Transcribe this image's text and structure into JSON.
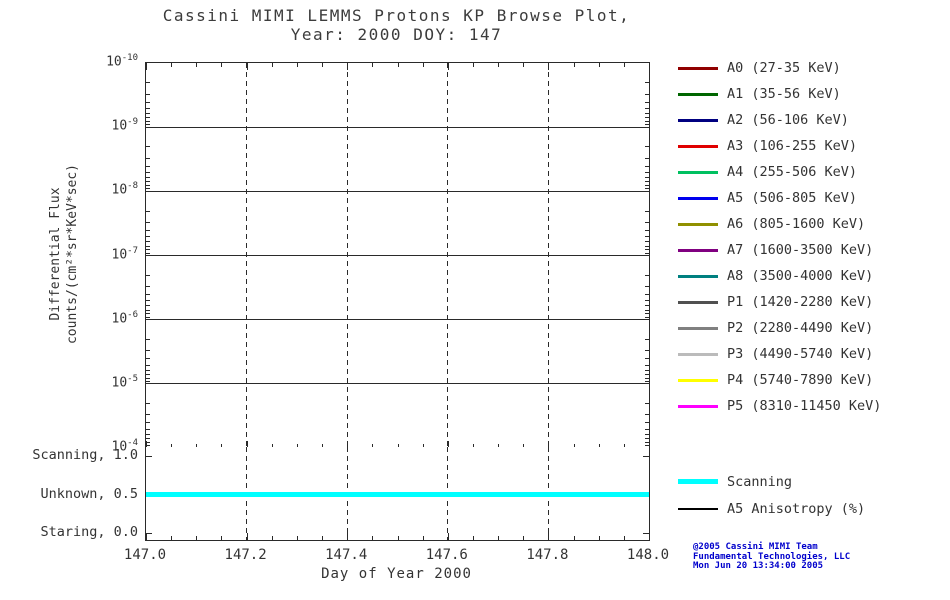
{
  "header": {
    "title": "Cassini MIMI LEMMS Protons KP Browse Plot,",
    "subtitle": "Year: 2000 DOY: 147"
  },
  "chart_data": {
    "type": "line",
    "title": "Cassini MIMI LEMMS Protons KP Browse Plot, Year: 2000 DOY: 147",
    "xlabel": "Day of Year 2000",
    "ylabel": "Differential Flux counts/(cm²*sr*KeV*sec)",
    "ylabel_line1": "Differential Flux",
    "ylabel_line2": "counts/(cm²*sr*KeV*sec)",
    "x_range": [
      147.0,
      148.0
    ],
    "x_tick_labels": [
      "147.0",
      "147.2",
      "147.4",
      "147.6",
      "147.8",
      "148.0"
    ],
    "x_minor_tick_step": 0.05,
    "y_axis": {
      "scale": "log",
      "tick_exponents_top_to_bottom": [
        -10,
        -9,
        -8,
        -7,
        -6,
        -5,
        -4
      ],
      "note": "flux axis labeled 10^-10 at top through 10^-4 at bottom; no flux data is plotted in the main panel"
    },
    "series": [],
    "grid": {
      "horizontal": "solid",
      "vertical": "dashed",
      "vertical_positions": [
        147.2,
        147.4,
        147.6,
        147.8
      ]
    },
    "status_panel": {
      "axis_labels_top_to_bottom": [
        "Scanning, 1.0",
        "Unknown, 0.5",
        "Staring, 0.0"
      ],
      "axis_values": [
        1.0,
        0.5,
        0.0
      ],
      "series": [
        {
          "name": "Scanning",
          "color": "#00FFFF",
          "value": 0.5,
          "x_start": 147.0,
          "x_end": 148.0
        }
      ]
    },
    "legend_position": "right",
    "legend": [
      {
        "label": "A0 (27-35 KeV)",
        "color": "#900000"
      },
      {
        "label": "A1 (35-56 KeV)",
        "color": "#006600"
      },
      {
        "label": "A2 (56-106 KeV)",
        "color": "#000080"
      },
      {
        "label": "A3 (106-255 KeV)",
        "color": "#E00000"
      },
      {
        "label": "A4 (255-506 KeV)",
        "color": "#00C060"
      },
      {
        "label": "A5 (506-805 KeV)",
        "color": "#0000EE"
      },
      {
        "label": "A6 (805-1600 KeV)",
        "color": "#909000"
      },
      {
        "label": "A7 (1600-3500 KeV)",
        "color": "#800080"
      },
      {
        "label": "A8 (3500-4000 KeV)",
        "color": "#008080"
      },
      {
        "label": "P1 (1420-2280 KeV)",
        "color": "#505050"
      },
      {
        "label": "P2 (2280-4490 KeV)",
        "color": "#808080"
      },
      {
        "label": "P3 (4490-5740 KeV)",
        "color": "#BBBBBB"
      },
      {
        "label": "P4 (5740-7890 KeV)",
        "color": "#FFFF00"
      },
      {
        "label": "P5 (8310-11450 KeV)",
        "color": "#FF00FF"
      }
    ],
    "status_legend": [
      {
        "label": "Scanning",
        "color": "#00FFFF",
        "thickness": 5
      },
      {
        "label": "A5 Anisotropy (%)",
        "color": "#000000",
        "thickness": 2
      }
    ]
  },
  "credits": {
    "line1": "@2005 Cassini MIMI Team",
    "line2": "Fundamental Technologies, LLC",
    "line3": "Mon Jun 20 13:34:00 2005",
    "color": "#0000CC"
  }
}
